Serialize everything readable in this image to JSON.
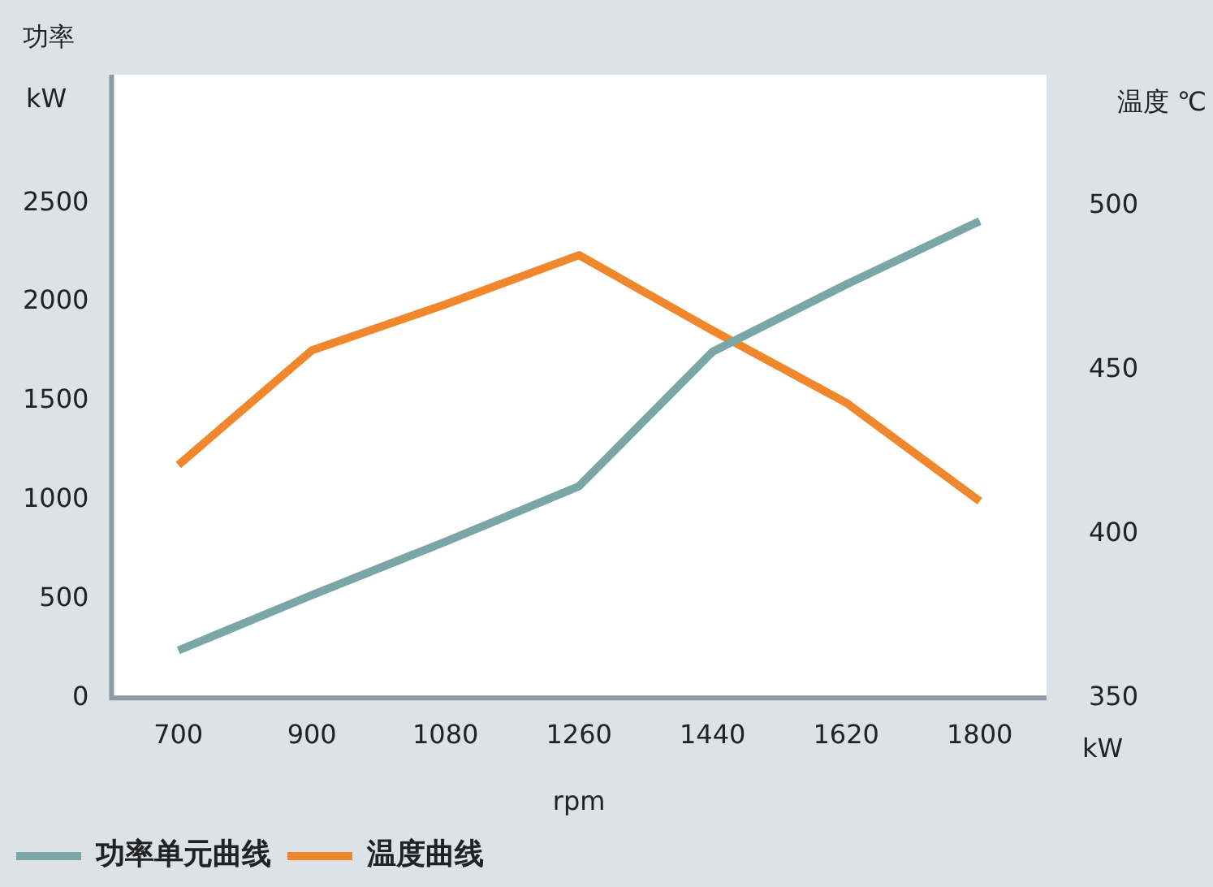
{
  "chart_data": {
    "type": "line",
    "xlabel": "rpm",
    "ylabel": "功率",
    "y2label": "温度 ℃",
    "categories": [
      "700",
      "900",
      "1080",
      "1260",
      "1440",
      "1620",
      "1800"
    ],
    "series": [
      {
        "name": "功率单元曲线",
        "color": "#7aa6a8",
        "values": [
          240,
          520,
          790,
          1070,
          1750,
          2090,
          2410
        ]
      },
      {
        "name": "温度曲线",
        "color": "#f0872d",
        "axis": "y2",
        "values": [
          421,
          456,
          470,
          485,
          462,
          440,
          410
        ]
      }
    ],
    "ylim": [
      0,
      3150
    ],
    "yticks": [
      0,
      500,
      1000,
      1500,
      2000,
      2500
    ],
    "y2lim": [
      350,
      540
    ],
    "y2ticks": [
      350,
      400,
      450,
      500
    ],
    "annotations": [
      "kW",
      "kW"
    ],
    "legend": "bottom",
    "marker": "none",
    "line_style": "solid",
    "grid": false
  }
}
